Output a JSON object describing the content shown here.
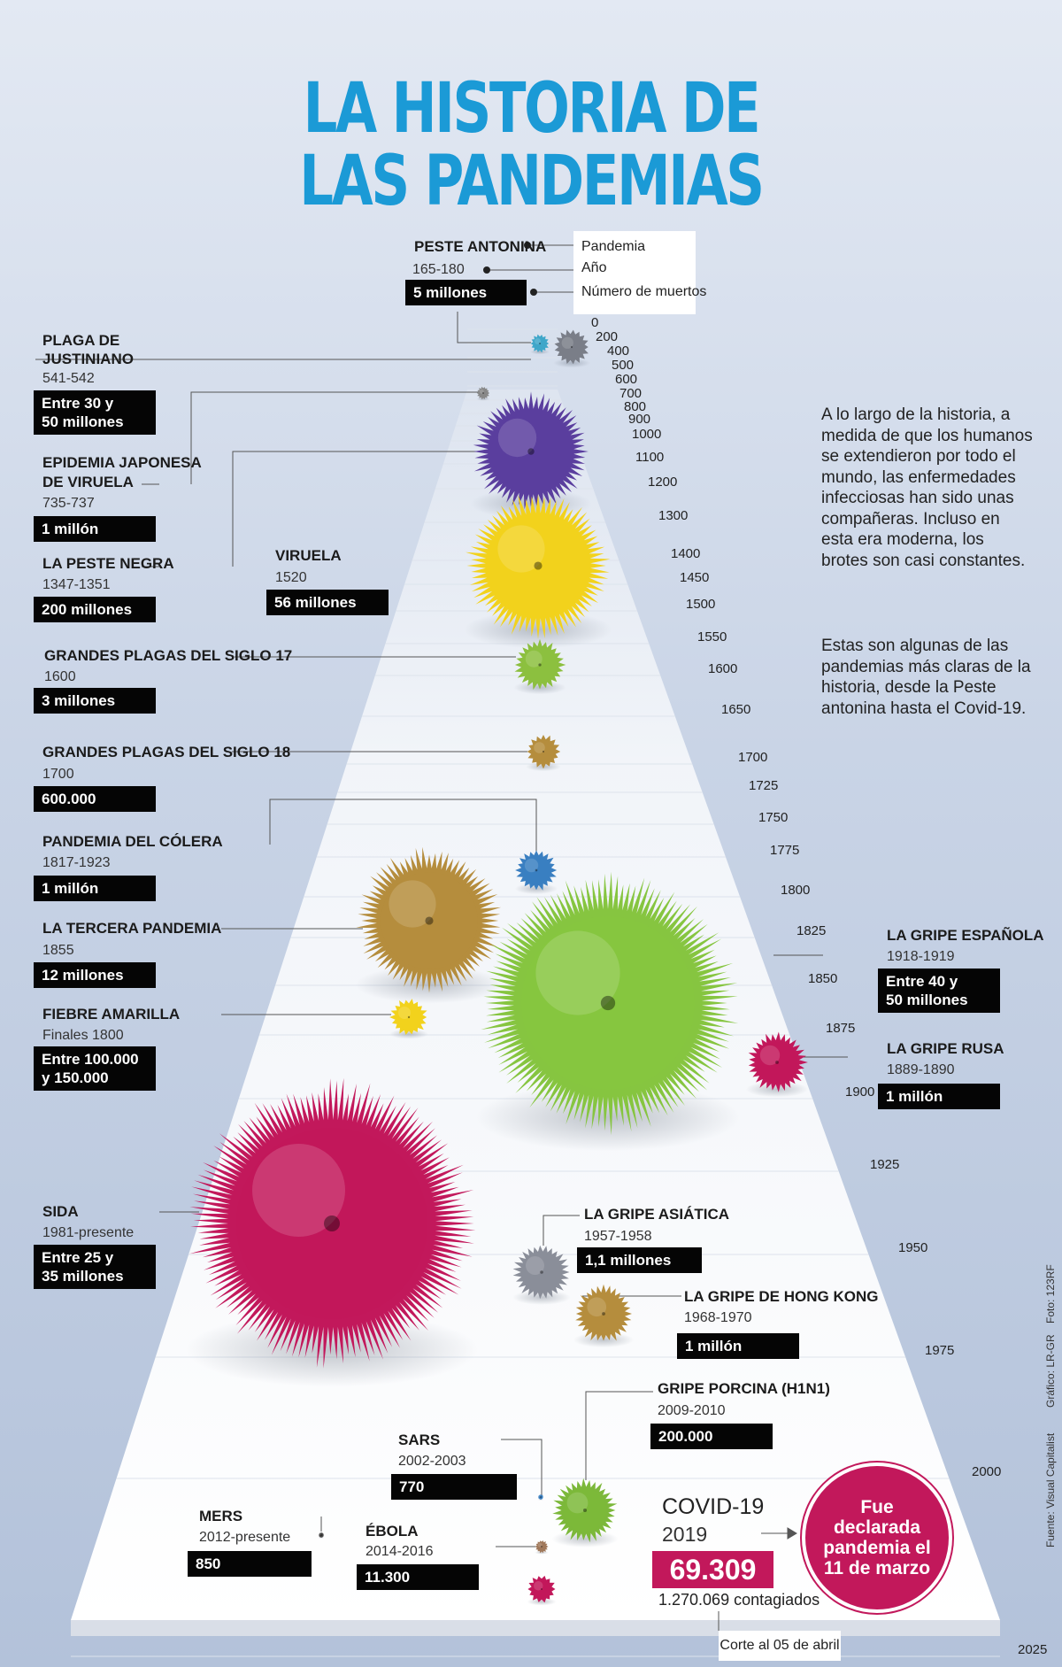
{
  "title": {
    "line1": "LA HISTORIA DE",
    "line2": "LAS PANDEMIAS"
  },
  "colors": {
    "title": "#1b9ad6",
    "accent": "#c2185b",
    "box": "#050505"
  },
  "legend": {
    "name": "PESTE ANTONINA",
    "years": "165-180",
    "deaths": "5 millones",
    "key_pandemic": "Pandemia",
    "key_year": "Año",
    "key_deaths": "Número de muertos"
  },
  "intro": {
    "p1": "A lo largo de la historia, a medida de que los humanos se extendieron por todo el mundo, las enfermedades infecciosas han sido unas compañeras. Incluso en esta era moderna, los brotes son casi constantes.",
    "p2": "Estas son algunas de las pandemias más claras de la historia, desde la Peste antonina hasta el Covid-19."
  },
  "timeline_ticks": [
    "0",
    "200",
    "400",
    "500",
    "600",
    "700",
    "800",
    "900",
    "1000",
    "1100",
    "1200",
    "1300",
    "1400",
    "1450",
    "1500",
    "1550",
    "1600",
    "1650",
    "1700",
    "1725",
    "1750",
    "1775",
    "1800",
    "1825",
    "1850",
    "1875",
    "1900",
    "1925",
    "1950",
    "1975",
    "2000",
    "2025"
  ],
  "pandemics": [
    {
      "name": "PLAGA DE JUSTINIANO",
      "name_l1": "PLAGA DE",
      "name_l2": "JUSTINIANO",
      "years": "541-542",
      "deaths": "Entre 30 y 50 millones",
      "deaths_l1": "Entre 30 y",
      "deaths_l2": "50 millones",
      "color": "#5a3e9e",
      "shown_deaths_millions": 40
    },
    {
      "name": "EPIDEMIA JAPONESA DE VIRUELA",
      "name_l1": "EPIDEMIA JAPONESA",
      "name_l2": "DE VIRUELA",
      "years": "735-737",
      "deaths": "1 millón",
      "color": "#888888",
      "shown_deaths_millions": 1
    },
    {
      "name": "LA PESTE NEGRA",
      "years": "1347-1351",
      "deaths": "200 millones",
      "color": "#f2d21c",
      "shown_deaths_millions": 200
    },
    {
      "name": "VIRUELA",
      "years": "1520",
      "deaths": "56 millones",
      "color": "#5a3e9e",
      "shown_deaths_millions": 56
    },
    {
      "name": "GRANDES PLAGAS DEL SIGLO 17",
      "years": "1600",
      "deaths": "3 millones",
      "color": "#8cbf3f",
      "shown_deaths_millions": 3
    },
    {
      "name": "GRANDES PLAGAS DEL SIGLO 18",
      "years": "1700",
      "deaths": "600.000",
      "color": "#b58d3d",
      "shown_deaths_millions": 0.6
    },
    {
      "name": "PANDEMIA DEL CÓLERA",
      "years": "1817-1923",
      "deaths": "1 millón",
      "color": "#3a7fc1",
      "shown_deaths_millions": 1
    },
    {
      "name": "LA TERCERA PANDEMIA",
      "years": "1855",
      "deaths": "12 millones",
      "color": "#b58d3d",
      "shown_deaths_millions": 12
    },
    {
      "name": "FIEBRE AMARILLA",
      "years": "Finales 1800",
      "deaths": "Entre 100.000 y 150.000",
      "deaths_l1": "Entre 100.000",
      "deaths_l2": "y 150.000",
      "color": "#f2d21c",
      "shown_deaths_millions": 0.125
    },
    {
      "name": "LA GRIPE ESPAÑOLA",
      "years": "1918-1919",
      "deaths": "Entre 40 y 50 millones",
      "deaths_l1": "Entre 40 y",
      "deaths_l2": "50 millones",
      "color": "#86c540",
      "shown_deaths_millions": 45
    },
    {
      "name": "LA GRIPE RUSA",
      "years": "1889-1890",
      "deaths": "1 millón",
      "color": "#c2185b",
      "shown_deaths_millions": 1
    },
    {
      "name": "SIDA",
      "years": "1981-presente",
      "deaths": "Entre 25 y 35 millones",
      "deaths_l1": "Entre 25 y",
      "deaths_l2": "35 millones",
      "color": "#c2185b",
      "shown_deaths_millions": 30
    },
    {
      "name": "LA GRIPE ASIÁTICA",
      "years": "1957-1958",
      "deaths": "1,1 millones",
      "color": "#8a8e99",
      "shown_deaths_millions": 1.1
    },
    {
      "name": "LA GRIPE DE HONG KONG",
      "years": "1968-1970",
      "deaths": "1 millón",
      "color": "#b58d3d",
      "shown_deaths_millions": 1
    },
    {
      "name": "GRIPE PORCINA (H1N1)",
      "years": "2009-2010",
      "deaths": "200.000",
      "color": "#7cb83a",
      "shown_deaths_millions": 0.2
    },
    {
      "name": "SARS",
      "years": "2002-2003",
      "deaths": "770",
      "color": "#3a7fc1",
      "shown_deaths_millions": 0.00077
    },
    {
      "name": "MERS",
      "years": "2012-presente",
      "deaths": "850",
      "color": "#444444",
      "shown_deaths_millions": 0.00085
    },
    {
      "name": "ÉBOLA",
      "years": "2014-2016",
      "deaths": "11.300",
      "color": "#a0785a",
      "shown_deaths_millions": 0.0113
    }
  ],
  "covid": {
    "name": "COVID-19",
    "year": "2019",
    "deaths": "69.309",
    "infected": "1.270.069 contagiados",
    "cutoff": "Corte al 05 de abril",
    "note": "Fue declarada pandemia el 11 de marzo"
  },
  "credits": {
    "source": "Fuente: Visual Capitalist",
    "graphic": "Gráfico: LR-GR",
    "photo": "Foto: 123RF"
  }
}
